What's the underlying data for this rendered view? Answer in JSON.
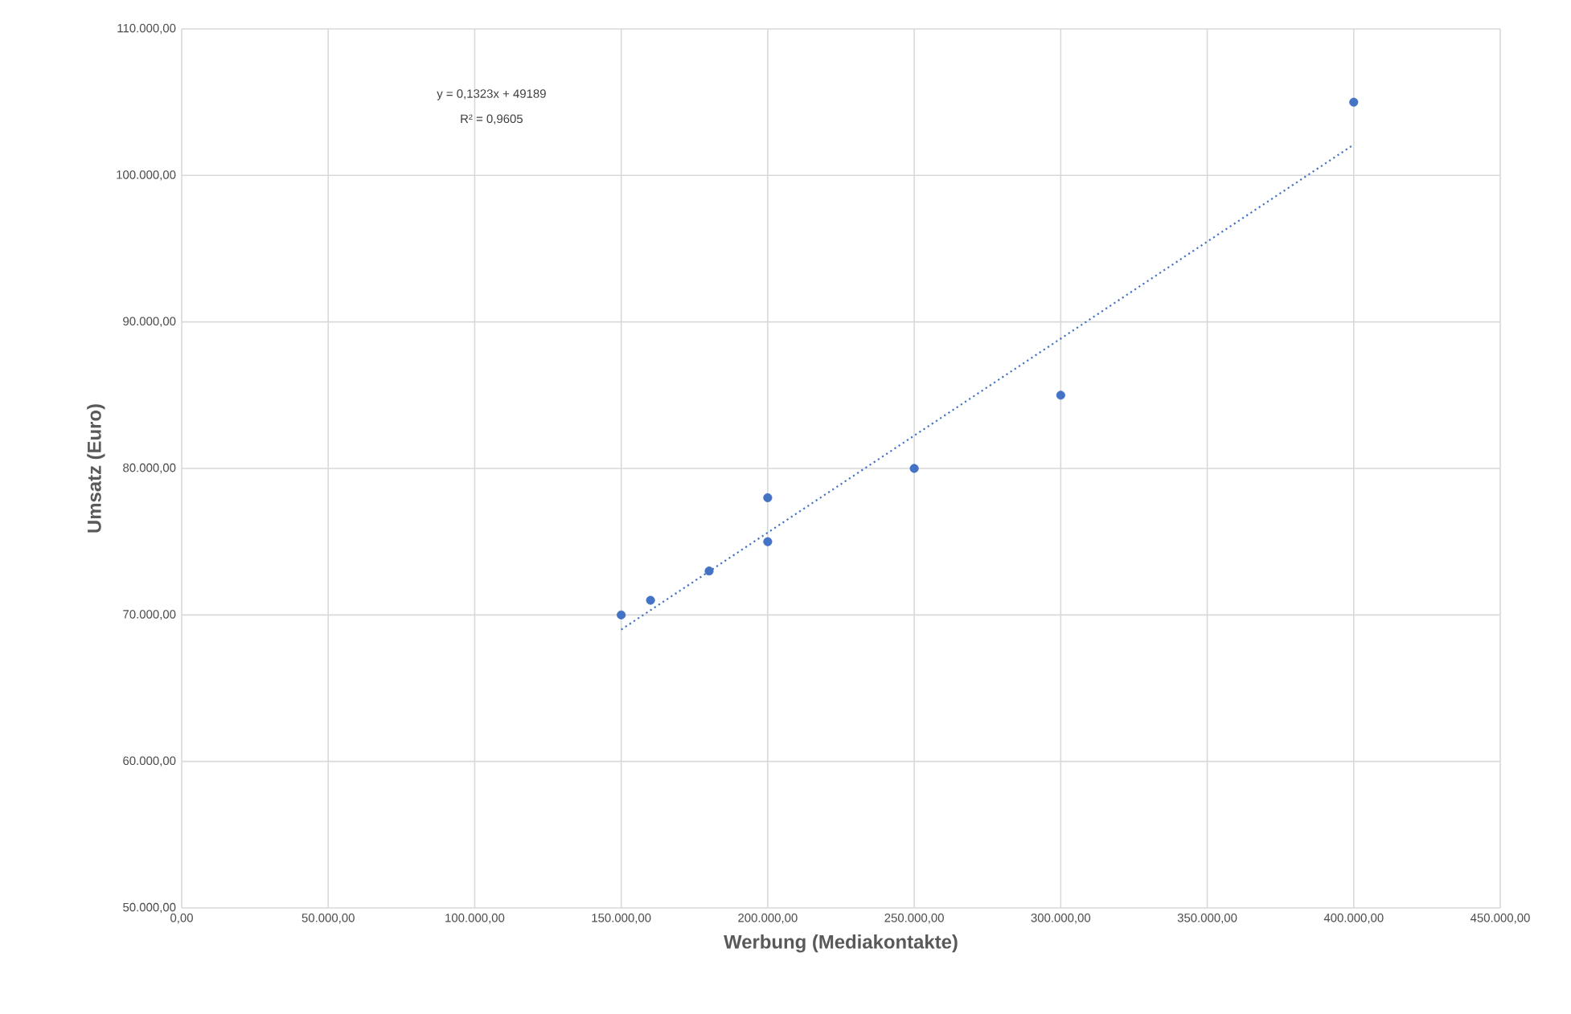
{
  "chart_data": {
    "type": "scatter",
    "xlabel": "Werbung (Mediakontakte)",
    "ylabel": "Umsatz (Euro)",
    "series": [
      {
        "color": "#4472c4",
        "marker": "circle",
        "x": [
          150000,
          160000,
          180000,
          200000,
          200000,
          250000,
          300000,
          400000
        ],
        "values": [
          70000,
          71000,
          73000,
          78000,
          75000,
          80000,
          85000,
          105000
        ]
      },
      {
        "type": "line",
        "color": "#4472c4",
        "marker": "none",
        "line_style": "dotted",
        "x": [
          150000,
          400000
        ],
        "values": [
          69000,
          102100
        ]
      }
    ],
    "xlim": [
      0,
      450000
    ],
    "ylim": [
      50000,
      110000
    ],
    "xticks": [
      {
        "value": 0,
        "label": "0,00"
      },
      {
        "value": 50000,
        "label": "50.000,00"
      },
      {
        "value": 100000,
        "label": "100.000,00"
      },
      {
        "value": 150000,
        "label": "150.000,00"
      },
      {
        "value": 200000,
        "label": "200.000,00"
      },
      {
        "value": 250000,
        "label": "250.000,00"
      },
      {
        "value": 300000,
        "label": "300.000,00"
      },
      {
        "value": 350000,
        "label": "350.000,00"
      },
      {
        "value": 400000,
        "label": "400.000,00"
      },
      {
        "value": 450000,
        "label": "450.000,00"
      }
    ],
    "yticks": [
      {
        "value": 50000,
        "label": "50.000,00"
      },
      {
        "value": 60000,
        "label": "60.000,00"
      },
      {
        "value": 70000,
        "label": "70.000,00"
      },
      {
        "value": 80000,
        "label": "80.000,00"
      },
      {
        "value": 90000,
        "label": "90.000,00"
      },
      {
        "value": 100000,
        "label": "100.000,00"
      },
      {
        "value": 110000,
        "label": "110.000,00"
      }
    ],
    "grid": true,
    "annotations": [
      "y = 0,1323x + 49189",
      "R² = 0,9605"
    ]
  }
}
